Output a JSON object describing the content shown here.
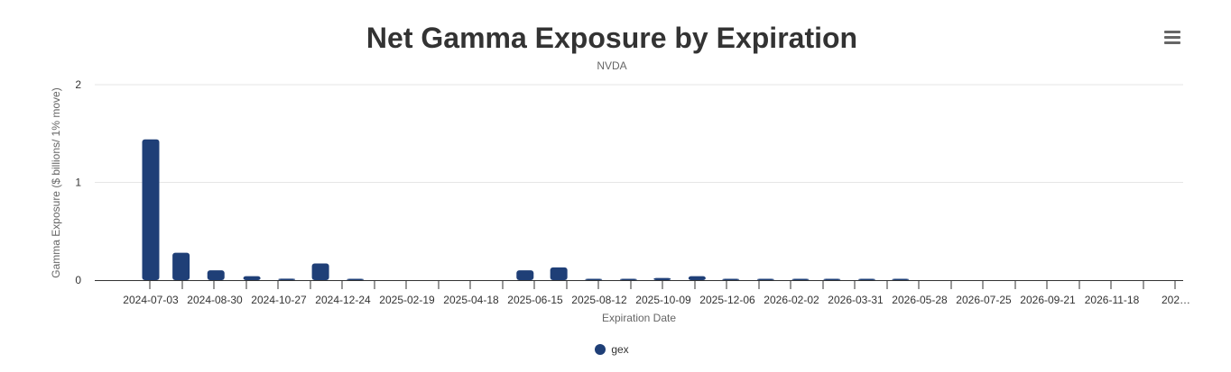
{
  "chart_data": {
    "type": "bar",
    "title": "Net Gamma Exposure by Expiration",
    "subtitle": "NVDA",
    "xlabel": "Expiration Date",
    "ylabel": "Gamma Exposure ($ billions/ 1% move)",
    "ylim": [
      0,
      2
    ],
    "yticks": [
      0,
      1,
      2
    ],
    "grid": true,
    "legend_position": "bottom-center",
    "color": "#1f3f77",
    "series": [
      {
        "name": "gex",
        "points": [
          {
            "x": "2024-07-03",
            "y": 1.44
          },
          {
            "x": "2024-07-30",
            "y": 0.28
          },
          {
            "x": "2024-08-30",
            "y": 0.1
          },
          {
            "x": "2024-10-01",
            "y": 0.04
          },
          {
            "x": "2024-11-01",
            "y": 0.015
          },
          {
            "x": "2024-12-01",
            "y": 0.17
          },
          {
            "x": "2025-01-01",
            "y": 0.008
          },
          {
            "x": "2025-06-01",
            "y": 0.1
          },
          {
            "x": "2025-07-01",
            "y": 0.13
          },
          {
            "x": "2025-08-01",
            "y": 0.012
          },
          {
            "x": "2025-09-01",
            "y": 0.006
          },
          {
            "x": "2025-10-01",
            "y": 0.022
          },
          {
            "x": "2025-11-01",
            "y": 0.04
          },
          {
            "x": "2025-12-01",
            "y": 0.006
          },
          {
            "x": "2026-01-01",
            "y": 0.006
          },
          {
            "x": "2026-02-01",
            "y": 0.012
          },
          {
            "x": "2026-03-01",
            "y": 0.006
          },
          {
            "x": "2026-04-01",
            "y": 0.006
          },
          {
            "x": "2026-05-01",
            "y": 0.012
          }
        ]
      }
    ],
    "x_ticks": [
      "2024-07-03",
      "2024-08-30",
      "2024-10-27",
      "2024-12-24",
      "2025-02-19",
      "2025-04-18",
      "2025-06-15",
      "2025-08-12",
      "2025-10-09",
      "2025-12-06",
      "2026-02-02",
      "2026-03-31",
      "2026-05-28",
      "2026-07-25",
      "2026-09-21",
      "2026-11-18",
      "202…"
    ]
  },
  "menu": {
    "icon": "hamburger-menu-icon"
  }
}
